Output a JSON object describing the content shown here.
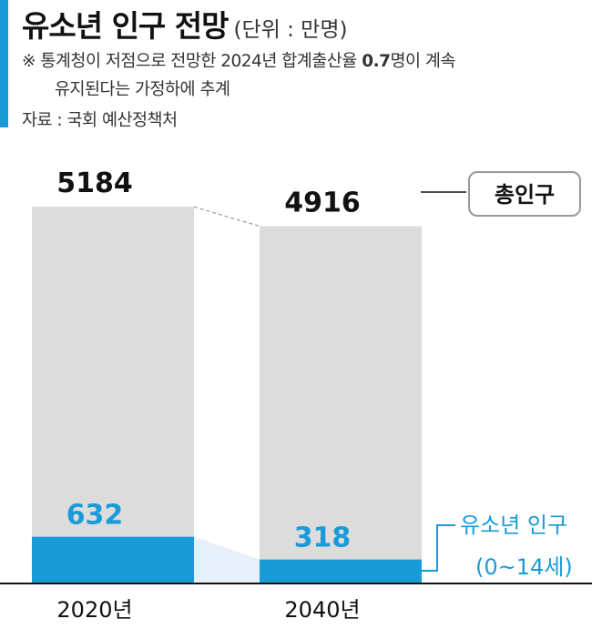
{
  "header": {
    "title": "유소년 인구 전망",
    "unit": "(단위 : 만명)",
    "note_prefix": "※ 통계청이 저점으로 전망한 2024년 합계출산율 ",
    "note_bold": "0.7",
    "note_suffix": "명이 계속",
    "note_line2": "유지된다는 가정하에 추계",
    "source": "자료 : 국회 예산정책처"
  },
  "colors": {
    "accent": "#1a9ad6",
    "total_bar": "#dcdcdc",
    "youth_bar": "#1a9ad6",
    "connector": "#e6f0fa"
  },
  "chart_data": {
    "type": "bar",
    "categories": [
      "2020년",
      "2040년"
    ],
    "series": [
      {
        "name": "총인구",
        "values": [
          5184,
          4916
        ]
      },
      {
        "name": "유소년 인구",
        "values": [
          632,
          318
        ]
      }
    ],
    "legend": {
      "total": "총인구",
      "youth_line1": "유소년 인구",
      "youth_line2": "(0~14세)"
    },
    "ylim": [
      0,
      5400
    ]
  }
}
